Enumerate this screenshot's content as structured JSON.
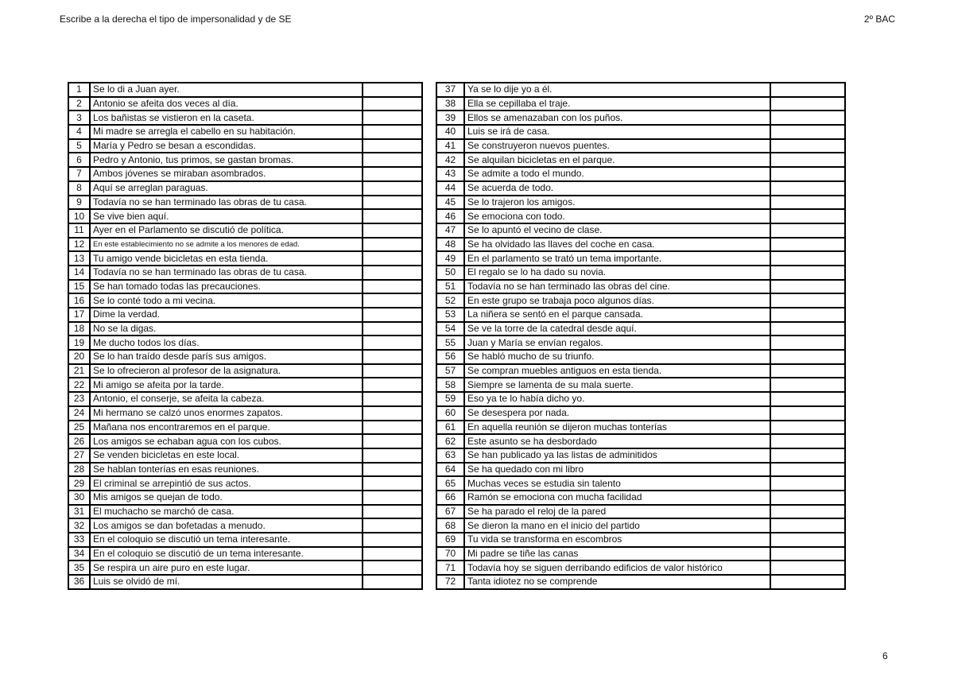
{
  "header": {
    "title": "Escribe a la derecha el tipo de impersonalidad y de SE",
    "course": "2º BAC"
  },
  "footer": {
    "page_number": "6"
  },
  "tables": {
    "left": {
      "rows": [
        {
          "n": "1",
          "text": "Se lo di a Juan ayer."
        },
        {
          "n": "2",
          "text": "Antonio se afeita dos veces al día."
        },
        {
          "n": "3",
          "text": "Los bañistas se vistieron en la caseta."
        },
        {
          "n": "4",
          "text": "Mi madre se arregla el cabello en su habitación."
        },
        {
          "n": "5",
          "text": "María y Pedro se besan a escondidas."
        },
        {
          "n": "6",
          "text": "Pedro y Antonio, tus primos, se gastan bromas."
        },
        {
          "n": "7",
          "text": "Ambos jóvenes se miraban asombrados."
        },
        {
          "n": "8",
          "text": "Aquí se arreglan paraguas."
        },
        {
          "n": "9",
          "text": "Todavía no se han terminado las obras de tu casa."
        },
        {
          "n": "10",
          "text": "Se vive bien aquí."
        },
        {
          "n": "11",
          "text": "Ayer en el Parlamento se discutió de política."
        },
        {
          "n": "12",
          "text": "En este establecimiento no se admite a los menores de edad.",
          "small": true
        },
        {
          "n": "13",
          "text": "Tu amigo vende bicicletas en esta tienda."
        },
        {
          "n": "14",
          "text": "Todavía no se han terminado las obras de tu casa."
        },
        {
          "n": "15",
          "text": "Se han tomado todas las precauciones."
        },
        {
          "n": "16",
          "text": "Se lo conté todo a mi vecina."
        },
        {
          "n": "17",
          "text": "Dime la verdad."
        },
        {
          "n": "18",
          "text": "No se la digas."
        },
        {
          "n": "19",
          "text": "Me ducho todos los días."
        },
        {
          "n": "20",
          "text": "Se lo han traído desde parís sus amigos."
        },
        {
          "n": "21",
          "text": "Se lo ofrecieron al profesor de la asignatura."
        },
        {
          "n": "22",
          "text": "Mi amigo se afeita por la tarde."
        },
        {
          "n": "23",
          "text": "Antonio, el conserje, se afeita la cabeza."
        },
        {
          "n": "24",
          "text": "Mi hermano se calzó unos enormes zapatos."
        },
        {
          "n": "25",
          "text": "Mañana nos encontraremos en el parque."
        },
        {
          "n": "26",
          "text": "Los amigos se echaban agua con los cubos."
        },
        {
          "n": "27",
          "text": "Se venden bicicletas en este local."
        },
        {
          "n": "28",
          "text": "Se hablan tonterías en esas reuniones."
        },
        {
          "n": "29",
          "text": "El criminal se arrepintió de sus actos."
        },
        {
          "n": "30",
          "text": "Mis amigos se quejan de todo."
        },
        {
          "n": "31",
          "text": "El muchacho se marchó de casa."
        },
        {
          "n": "32",
          "text": "Los amigos se dan bofetadas a menudo."
        },
        {
          "n": "33",
          "text": "En el coloquio se discutió un tema interesante."
        },
        {
          "n": "34",
          "text": "En el coloquio se discutió de un tema interesante."
        },
        {
          "n": "35",
          "text": "Se respira un aire puro en este lugar."
        },
        {
          "n": "36",
          "text": "Luis se olvidó de mí."
        }
      ]
    },
    "right": {
      "rows": [
        {
          "n": "37",
          "text": "Ya se lo dije yo a él."
        },
        {
          "n": "38",
          "text": "Ella se cepillaba el traje."
        },
        {
          "n": "39",
          "text": "Ellos se amenazaban con los puños."
        },
        {
          "n": "40",
          "text": "Luis se irá de casa."
        },
        {
          "n": "41",
          "text": "Se construyeron nuevos puentes."
        },
        {
          "n": "42",
          "text": "Se alquilan bicicletas en el parque."
        },
        {
          "n": "43",
          "text": "Se admite a todo el mundo."
        },
        {
          "n": "44",
          "text": "Se acuerda de todo."
        },
        {
          "n": "45",
          "text": "Se lo trajeron los amigos."
        },
        {
          "n": "46",
          "text": "Se emociona con todo."
        },
        {
          "n": "47",
          "text": "Se lo apuntó el vecino de clase."
        },
        {
          "n": "48",
          "text": "Se ha olvidado las llaves del coche en casa."
        },
        {
          "n": "49",
          "text": "En el parlamento se trató un tema importante."
        },
        {
          "n": "50",
          "text": "El regalo se lo ha dado su novia."
        },
        {
          "n": "51",
          "text": "Todavía no se han terminado las obras del cine."
        },
        {
          "n": "52",
          "text": "En este grupo se trabaja poco algunos días."
        },
        {
          "n": "53",
          "text": "La niñera se sentó en el parque cansada."
        },
        {
          "n": "54",
          "text": "Se ve la torre de la catedral desde aquí."
        },
        {
          "n": "55",
          "text": "Juan y María se envían regalos."
        },
        {
          "n": "56",
          "text": "Se habló mucho de su triunfo."
        },
        {
          "n": "57",
          "text": "Se compran muebles antiguos en esta tienda."
        },
        {
          "n": "58",
          "text": "Siempre se lamenta de su mala suerte."
        },
        {
          "n": "59",
          "text": "Eso ya te lo había dicho yo."
        },
        {
          "n": "60",
          "text": "Se desespera por nada."
        },
        {
          "n": "61",
          "text": "En aquella reunión se dijeron muchas tonterías"
        },
        {
          "n": "62",
          "text": "Este asunto se ha desbordado"
        },
        {
          "n": "63",
          "text": "Se han publicado ya las listas de adminitidos"
        },
        {
          "n": "64",
          "text": "Se ha quedado con mi libro"
        },
        {
          "n": "65",
          "text": "Muchas veces se estudia sin talento"
        },
        {
          "n": "66",
          "text": "Ramón se emociona con mucha facilidad"
        },
        {
          "n": "67",
          "text": "Se ha parado el reloj de la pared"
        },
        {
          "n": "68",
          "text": "Se dieron la mano en el inicio del partido"
        },
        {
          "n": "69",
          "text": "Tu vida se transforma en escombros"
        },
        {
          "n": "70",
          "text": "Mi padre se tiñe las canas"
        },
        {
          "n": "71",
          "text": "Todavía hoy se siguen derribando edificios de valor histórico"
        },
        {
          "n": "72",
          "text": "Tanta idiotez no se comprende"
        }
      ]
    }
  }
}
